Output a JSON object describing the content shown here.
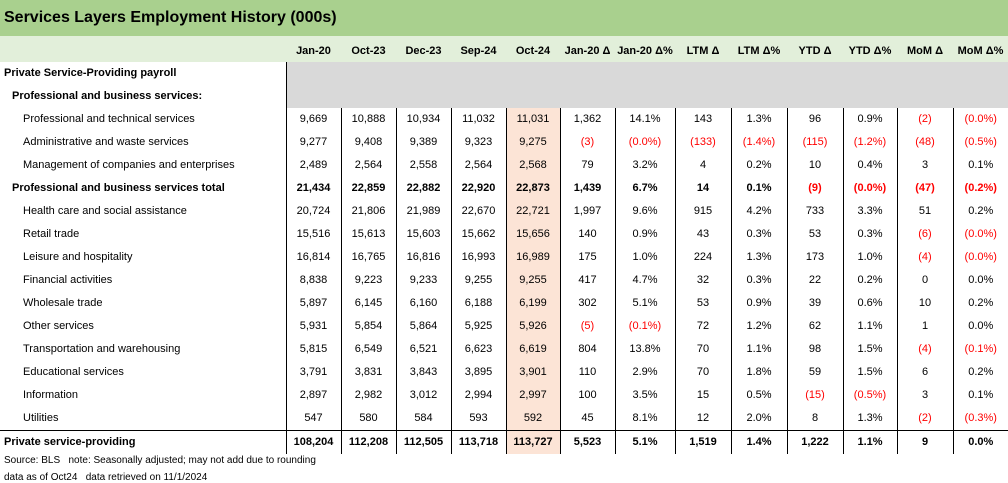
{
  "title": "Services Layers Employment History (000s)",
  "columns": [
    "Jan-20",
    "Oct-23",
    "Dec-23",
    "Sep-24",
    "Oct-24",
    "Jan-20 Δ",
    "Jan-20 Δ%",
    "LTM Δ",
    "LTM Δ%",
    "YTD Δ",
    "YTD Δ%",
    "MoM Δ",
    "MoM Δ%"
  ],
  "section_headers": {
    "private_payroll": "Private Service-Providing payroll",
    "pbs": "Professional and business services:"
  },
  "rows": [
    {
      "label": "Professional and technical services",
      "values": [
        "9,669",
        "10,888",
        "10,934",
        "11,032",
        "11,031",
        "1,362",
        "14.1%",
        "143",
        "1.3%",
        "96",
        "0.9%",
        "(2)",
        "(0.0%)"
      ]
    },
    {
      "label": "Administrative and waste services",
      "values": [
        "9,277",
        "9,408",
        "9,389",
        "9,323",
        "9,275",
        "(3)",
        "(0.0%)",
        "(133)",
        "(1.4%)",
        "(115)",
        "(1.2%)",
        "(48)",
        "(0.5%)"
      ]
    },
    {
      "label": "Management of companies and enterprises",
      "values": [
        "2,489",
        "2,564",
        "2,558",
        "2,564",
        "2,568",
        "79",
        "3.2%",
        "4",
        "0.2%",
        "10",
        "0.4%",
        "3",
        "0.1%"
      ]
    },
    {
      "label": "Professional and business services total",
      "values": [
        "21,434",
        "22,859",
        "22,882",
        "22,920",
        "22,873",
        "1,439",
        "6.7%",
        "14",
        "0.1%",
        "(9)",
        "(0.0%)",
        "(47)",
        "(0.2%)"
      ]
    },
    {
      "label": "Health care and social assistance",
      "values": [
        "20,724",
        "21,806",
        "21,989",
        "22,670",
        "22,721",
        "1,997",
        "9.6%",
        "915",
        "4.2%",
        "733",
        "3.3%",
        "51",
        "0.2%"
      ]
    },
    {
      "label": "Retail trade",
      "values": [
        "15,516",
        "15,613",
        "15,603",
        "15,662",
        "15,656",
        "140",
        "0.9%",
        "43",
        "0.3%",
        "53",
        "0.3%",
        "(6)",
        "(0.0%)"
      ]
    },
    {
      "label": "Leisure and hospitality",
      "values": [
        "16,814",
        "16,765",
        "16,816",
        "16,993",
        "16,989",
        "175",
        "1.0%",
        "224",
        "1.3%",
        "173",
        "1.0%",
        "(4)",
        "(0.0%)"
      ]
    },
    {
      "label": "Financial activities",
      "values": [
        "8,838",
        "9,223",
        "9,233",
        "9,255",
        "9,255",
        "417",
        "4.7%",
        "32",
        "0.3%",
        "22",
        "0.2%",
        "0",
        "0.0%"
      ]
    },
    {
      "label": "Wholesale trade",
      "values": [
        "5,897",
        "6,145",
        "6,160",
        "6,188",
        "6,199",
        "302",
        "5.1%",
        "53",
        "0.9%",
        "39",
        "0.6%",
        "10",
        "0.2%"
      ]
    },
    {
      "label": "Other services",
      "values": [
        "5,931",
        "5,854",
        "5,864",
        "5,925",
        "5,926",
        "(5)",
        "(0.1%)",
        "72",
        "1.2%",
        "62",
        "1.1%",
        "1",
        "0.0%"
      ]
    },
    {
      "label": "Transportation and warehousing",
      "values": [
        "5,815",
        "6,549",
        "6,521",
        "6,623",
        "6,619",
        "804",
        "13.8%",
        "70",
        "1.1%",
        "98",
        "1.5%",
        "(4)",
        "(0.1%)"
      ]
    },
    {
      "label": "Educational services",
      "values": [
        "3,791",
        "3,831",
        "3,843",
        "3,895",
        "3,901",
        "110",
        "2.9%",
        "70",
        "1.8%",
        "59",
        "1.5%",
        "6",
        "0.2%"
      ]
    },
    {
      "label": "Information",
      "values": [
        "2,897",
        "2,982",
        "3,012",
        "2,994",
        "2,997",
        "100",
        "3.5%",
        "15",
        "0.5%",
        "(15)",
        "(0.5%)",
        "3",
        "0.1%"
      ]
    },
    {
      "label": "Utilities",
      "values": [
        "547",
        "580",
        "584",
        "593",
        "592",
        "45",
        "8.1%",
        "12",
        "2.0%",
        "8",
        "1.3%",
        "(2)",
        "(0.3%)"
      ]
    },
    {
      "label": "Private service-providing",
      "values": [
        "108,204",
        "112,208",
        "112,505",
        "113,718",
        "113,727",
        "5,523",
        "5.1%",
        "1,519",
        "1.4%",
        "1,222",
        "1.1%",
        "9",
        "0.0%"
      ]
    }
  ],
  "notes": {
    "line1": "Source: BLS   note: Seasonally adjusted; may not add due to rounding",
    "line2": "data as of Oct24   data retrieved on 11/1/2024"
  },
  "colors": {
    "title_bg": "#a9d08e",
    "header_bg": "#e2efda",
    "highlight_col": "#fce4d6",
    "negative": "#ff0000",
    "gray_fill": "#d9d9d9"
  }
}
